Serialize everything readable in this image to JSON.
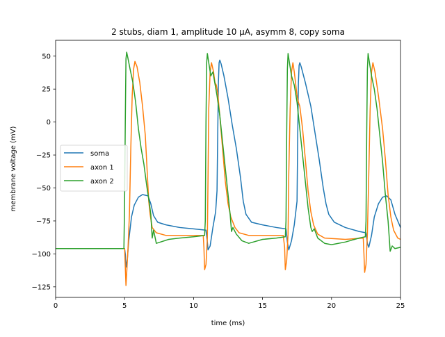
{
  "chart_data": {
    "type": "line",
    "title": "2 stubs, diam 1, amplitude 10 μA, asymm 8, copy soma",
    "xlabel": "time (ms)",
    "ylabel": "membrane voltage (mV)",
    "xlim": [
      0,
      25
    ],
    "ylim": [
      -133,
      62
    ],
    "xticks": [
      0,
      5,
      10,
      15,
      20,
      25
    ],
    "xtick_labels": [
      "0",
      "5",
      "10",
      "15",
      "20",
      "25"
    ],
    "yticks": [
      50,
      25,
      0,
      -25,
      -50,
      -75,
      -100,
      -125
    ],
    "ytick_labels": [
      "50",
      "25",
      "0",
      "−25",
      "−50",
      "−75",
      "−100",
      "−125"
    ],
    "grid": false,
    "legend_position": "center-left",
    "series": [
      {
        "name": "soma",
        "color": "#1f77b4",
        "points": [
          [
            0,
            -96
          ],
          [
            5.0,
            -96
          ],
          [
            5.05,
            -100
          ],
          [
            5.1,
            -110
          ],
          [
            5.2,
            -104
          ],
          [
            5.3,
            -90
          ],
          [
            5.5,
            -72
          ],
          [
            5.7,
            -63
          ],
          [
            6.0,
            -57
          ],
          [
            6.3,
            -55
          ],
          [
            6.7,
            -56
          ],
          [
            6.9,
            -62
          ],
          [
            7.1,
            -71
          ],
          [
            7.4,
            -76
          ],
          [
            8,
            -78
          ],
          [
            9,
            -80
          ],
          [
            10,
            -81
          ],
          [
            10.9,
            -82
          ],
          [
            11.0,
            -91
          ],
          [
            11.05,
            -97
          ],
          [
            11.2,
            -94
          ],
          [
            11.4,
            -80
          ],
          [
            11.6,
            -68
          ],
          [
            11.7,
            -52
          ],
          [
            11.75,
            -10
          ],
          [
            11.8,
            30
          ],
          [
            11.85,
            45
          ],
          [
            11.9,
            47
          ],
          [
            12.0,
            44
          ],
          [
            12.2,
            35
          ],
          [
            12.5,
            18
          ],
          [
            12.8,
            -2
          ],
          [
            13.1,
            -20
          ],
          [
            13.4,
            -42
          ],
          [
            13.6,
            -60
          ],
          [
            13.8,
            -70
          ],
          [
            14.2,
            -76
          ],
          [
            15,
            -78
          ],
          [
            16,
            -80
          ],
          [
            16.7,
            -81
          ],
          [
            16.8,
            -91
          ],
          [
            16.9,
            -97
          ],
          [
            17.1,
            -90
          ],
          [
            17.3,
            -78
          ],
          [
            17.5,
            -60
          ],
          [
            17.55,
            -10
          ],
          [
            17.6,
            30
          ],
          [
            17.65,
            43
          ],
          [
            17.7,
            45
          ],
          [
            17.8,
            42
          ],
          [
            18.1,
            30
          ],
          [
            18.5,
            12
          ],
          [
            18.8,
            -8
          ],
          [
            19.1,
            -28
          ],
          [
            19.4,
            -50
          ],
          [
            19.6,
            -62
          ],
          [
            19.8,
            -70
          ],
          [
            20.2,
            -76
          ],
          [
            21,
            -80
          ],
          [
            22,
            -83
          ],
          [
            22.5,
            -84
          ],
          [
            22.6,
            -92
          ],
          [
            22.7,
            -95
          ],
          [
            22.9,
            -86
          ],
          [
            23.1,
            -72
          ],
          [
            23.4,
            -62
          ],
          [
            23.7,
            -57
          ],
          [
            24.0,
            -56
          ],
          [
            24.3,
            -59
          ],
          [
            24.6,
            -70
          ],
          [
            25,
            -80
          ]
        ]
      },
      {
        "name": "axon 1",
        "color": "#ff7f0e",
        "points": [
          [
            0,
            -96
          ],
          [
            5.0,
            -96
          ],
          [
            5.05,
            -110
          ],
          [
            5.1,
            -124
          ],
          [
            5.15,
            -115
          ],
          [
            5.25,
            -95
          ],
          [
            5.35,
            -70
          ],
          [
            5.45,
            -20
          ],
          [
            5.55,
            20
          ],
          [
            5.65,
            40
          ],
          [
            5.75,
            46
          ],
          [
            5.9,
            42
          ],
          [
            6.1,
            30
          ],
          [
            6.3,
            12
          ],
          [
            6.5,
            -10
          ],
          [
            6.65,
            -40
          ],
          [
            6.75,
            -60
          ],
          [
            6.85,
            -70
          ],
          [
            7.0,
            -80
          ],
          [
            7.3,
            -84
          ],
          [
            8,
            -86
          ],
          [
            9,
            -86
          ],
          [
            10.7,
            -86
          ],
          [
            10.75,
            -95
          ],
          [
            10.8,
            -112
          ],
          [
            10.9,
            -108
          ],
          [
            11.0,
            -88
          ],
          [
            11.05,
            -40
          ],
          [
            11.1,
            10
          ],
          [
            11.2,
            38
          ],
          [
            11.3,
            45
          ],
          [
            11.45,
            38
          ],
          [
            11.55,
            30
          ],
          [
            11.65,
            28
          ],
          [
            11.75,
            22
          ],
          [
            11.9,
            5
          ],
          [
            12.1,
            -20
          ],
          [
            12.3,
            -45
          ],
          [
            12.5,
            -62
          ],
          [
            12.7,
            -72
          ],
          [
            13.0,
            -80
          ],
          [
            13.3,
            -84
          ],
          [
            14,
            -86
          ],
          [
            16.5,
            -86
          ],
          [
            16.6,
            -95
          ],
          [
            16.65,
            -112
          ],
          [
            16.75,
            -105
          ],
          [
            16.85,
            -85
          ],
          [
            16.9,
            -40
          ],
          [
            17.0,
            10
          ],
          [
            17.1,
            38
          ],
          [
            17.2,
            45
          ],
          [
            17.3,
            38
          ],
          [
            17.5,
            20
          ],
          [
            17.6,
            15
          ],
          [
            17.7,
            12
          ],
          [
            17.9,
            -5
          ],
          [
            18.1,
            -28
          ],
          [
            18.3,
            -52
          ],
          [
            18.5,
            -68
          ],
          [
            18.7,
            -78
          ],
          [
            19.0,
            -85
          ],
          [
            19.5,
            -88
          ],
          [
            21,
            -89
          ],
          [
            22.3,
            -88
          ],
          [
            22.35,
            -100
          ],
          [
            22.4,
            -114
          ],
          [
            22.5,
            -108
          ],
          [
            22.6,
            -85
          ],
          [
            22.7,
            -40
          ],
          [
            22.8,
            10
          ],
          [
            22.9,
            38
          ],
          [
            23.0,
            45
          ],
          [
            23.15,
            38
          ],
          [
            23.4,
            20
          ],
          [
            23.7,
            -5
          ],
          [
            23.9,
            -28
          ],
          [
            24.1,
            -55
          ],
          [
            24.3,
            -72
          ],
          [
            24.5,
            -82
          ],
          [
            24.8,
            -88
          ],
          [
            25,
            -89
          ]
        ]
      },
      {
        "name": "axon 2",
        "color": "#2ca02c",
        "points": [
          [
            0,
            -96
          ],
          [
            4.95,
            -96
          ],
          [
            5.0,
            -60
          ],
          [
            5.05,
            0
          ],
          [
            5.1,
            48
          ],
          [
            5.15,
            53
          ],
          [
            5.25,
            48
          ],
          [
            5.4,
            40
          ],
          [
            5.6,
            30
          ],
          [
            5.8,
            15
          ],
          [
            6.0,
            -5
          ],
          [
            6.2,
            -20
          ],
          [
            6.4,
            -32
          ],
          [
            6.6,
            -48
          ],
          [
            6.8,
            -62
          ],
          [
            6.9,
            -70
          ],
          [
            7.0,
            -88
          ],
          [
            7.1,
            -82
          ],
          [
            7.3,
            -92
          ],
          [
            7.6,
            -91
          ],
          [
            8.2,
            -89
          ],
          [
            9,
            -88
          ],
          [
            10,
            -87
          ],
          [
            10.8,
            -86
          ],
          [
            10.85,
            -75
          ],
          [
            10.9,
            0
          ],
          [
            10.95,
            45
          ],
          [
            11.0,
            52
          ],
          [
            11.1,
            45
          ],
          [
            11.25,
            35
          ],
          [
            11.4,
            38
          ],
          [
            11.5,
            32
          ],
          [
            11.7,
            20
          ],
          [
            11.9,
            5
          ],
          [
            12.1,
            -15
          ],
          [
            12.3,
            -35
          ],
          [
            12.5,
            -55
          ],
          [
            12.65,
            -70
          ],
          [
            12.75,
            -83
          ],
          [
            12.85,
            -80
          ],
          [
            13.1,
            -85
          ],
          [
            13.5,
            -90
          ],
          [
            14,
            -92
          ],
          [
            15,
            -89
          ],
          [
            16,
            -88
          ],
          [
            16.65,
            -87
          ],
          [
            16.7,
            -75
          ],
          [
            16.75,
            -10
          ],
          [
            16.8,
            40
          ],
          [
            16.85,
            52
          ],
          [
            16.95,
            45
          ],
          [
            17.1,
            35
          ],
          [
            17.3,
            28
          ],
          [
            17.5,
            15
          ],
          [
            17.7,
            -5
          ],
          [
            17.9,
            -25
          ],
          [
            18.1,
            -45
          ],
          [
            18.3,
            -65
          ],
          [
            18.5,
            -80
          ],
          [
            18.6,
            -83
          ],
          [
            18.75,
            -81
          ],
          [
            19.0,
            -88
          ],
          [
            19.5,
            -92
          ],
          [
            20,
            -93
          ],
          [
            21,
            -91
          ],
          [
            22,
            -88
          ],
          [
            22.45,
            -87
          ],
          [
            22.5,
            -75
          ],
          [
            22.55,
            -10
          ],
          [
            22.6,
            40
          ],
          [
            22.65,
            52
          ],
          [
            22.75,
            45
          ],
          [
            22.9,
            35
          ],
          [
            23.1,
            25
          ],
          [
            23.3,
            10
          ],
          [
            23.5,
            -10
          ],
          [
            23.7,
            -30
          ],
          [
            23.9,
            -55
          ],
          [
            24.1,
            -75
          ],
          [
            24.2,
            -90
          ],
          [
            24.25,
            -98
          ],
          [
            24.4,
            -94
          ],
          [
            24.6,
            -96
          ],
          [
            25,
            -95
          ]
        ]
      }
    ]
  }
}
